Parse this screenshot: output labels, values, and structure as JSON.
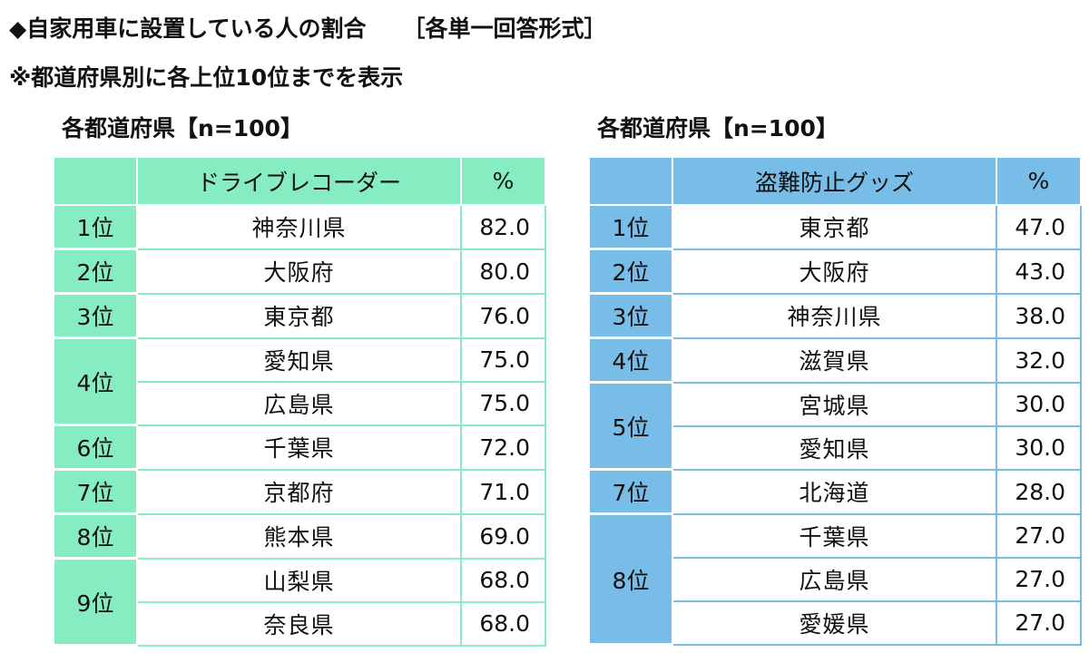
{
  "header": {
    "title": "◆自家用車に設置している人の割合",
    "format": "［各単一回答形式］",
    "note": "※都道府県別に各上位10位までを表示"
  },
  "tables": [
    {
      "subtitle": "各都道府県【n=100】",
      "accent": "#86ecc2",
      "col_item": "ドライブレコーダー",
      "col_pct": "%",
      "groups": [
        {
          "rank": "1位",
          "rows": [
            {
              "name": "神奈川県",
              "pct": "82.0"
            }
          ]
        },
        {
          "rank": "2位",
          "rows": [
            {
              "name": "大阪府",
              "pct": "80.0"
            }
          ]
        },
        {
          "rank": "3位",
          "rows": [
            {
              "name": "東京都",
              "pct": "76.0"
            }
          ]
        },
        {
          "rank": "4位",
          "rows": [
            {
              "name": "愛知県",
              "pct": "75.0"
            },
            {
              "name": "広島県",
              "pct": "75.0"
            }
          ]
        },
        {
          "rank": "6位",
          "rows": [
            {
              "name": "千葉県",
              "pct": "72.0"
            }
          ]
        },
        {
          "rank": "7位",
          "rows": [
            {
              "name": "京都府",
              "pct": "71.0"
            }
          ]
        },
        {
          "rank": "8位",
          "rows": [
            {
              "name": "熊本県",
              "pct": "69.0"
            }
          ]
        },
        {
          "rank": "9位",
          "rows": [
            {
              "name": "山梨県",
              "pct": "68.0"
            },
            {
              "name": "奈良県",
              "pct": "68.0"
            }
          ]
        }
      ]
    },
    {
      "subtitle": "各都道府県【n=100】",
      "accent": "#78bde8",
      "col_item": "盗難防止グッズ",
      "col_pct": "%",
      "groups": [
        {
          "rank": "1位",
          "rows": [
            {
              "name": "東京都",
              "pct": "47.0"
            }
          ]
        },
        {
          "rank": "2位",
          "rows": [
            {
              "name": "大阪府",
              "pct": "43.0"
            }
          ]
        },
        {
          "rank": "3位",
          "rows": [
            {
              "name": "神奈川県",
              "pct": "38.0"
            }
          ]
        },
        {
          "rank": "4位",
          "rows": [
            {
              "name": "滋賀県",
              "pct": "32.0"
            }
          ]
        },
        {
          "rank": "5位",
          "rows": [
            {
              "name": "宮城県",
              "pct": "30.0"
            },
            {
              "name": "愛知県",
              "pct": "30.0"
            }
          ]
        },
        {
          "rank": "7位",
          "rows": [
            {
              "name": "北海道",
              "pct": "28.0"
            }
          ]
        },
        {
          "rank": "8位",
          "rows": [
            {
              "name": "千葉県",
              "pct": "27.0"
            },
            {
              "name": "広島県",
              "pct": "27.0"
            },
            {
              "name": "愛媛県",
              "pct": "27.0"
            }
          ]
        }
      ]
    }
  ]
}
